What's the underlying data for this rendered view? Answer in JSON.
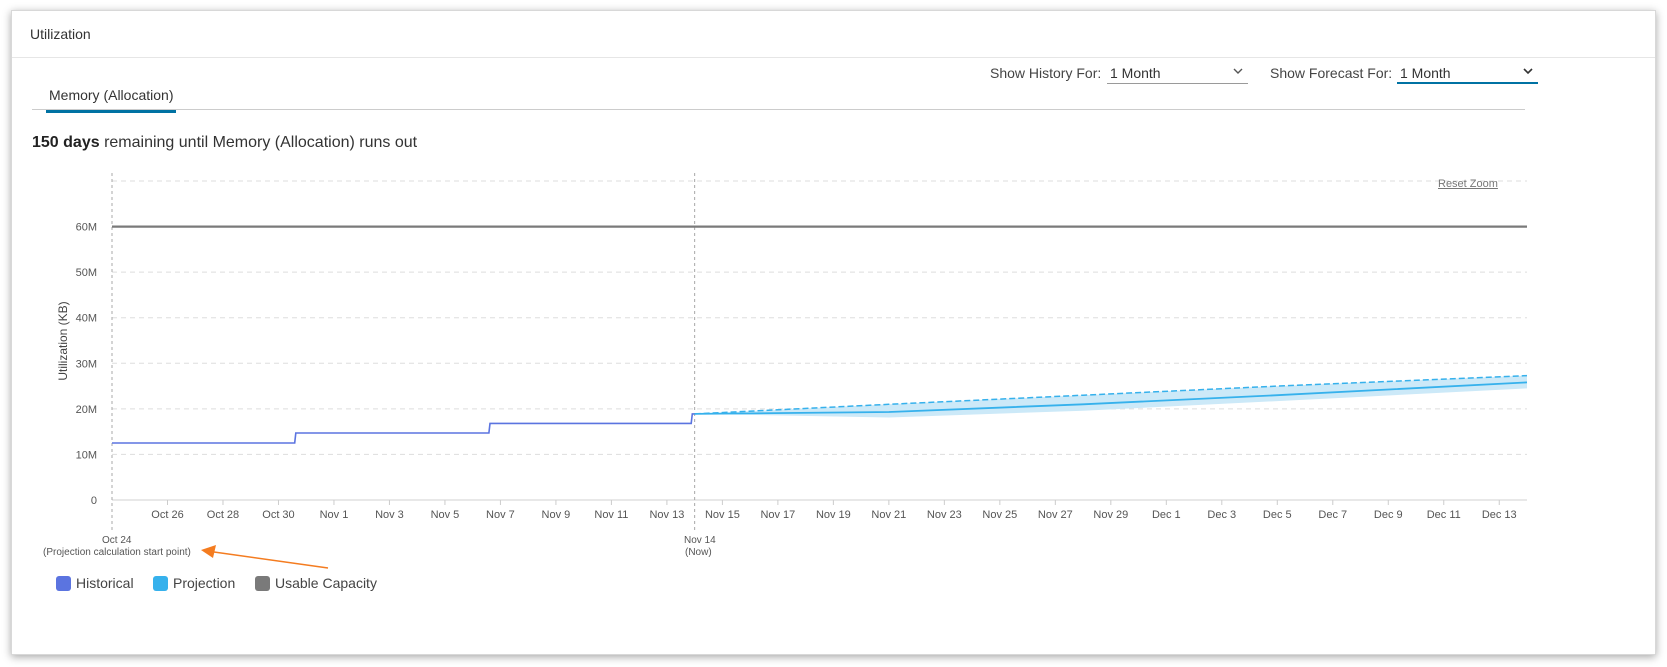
{
  "panel": {
    "title": "Utilization"
  },
  "controls": {
    "history_label": "Show History For:",
    "history_value": "1 Month",
    "forecast_label": "Show Forecast For:",
    "forecast_value": "1 Month"
  },
  "tabs": [
    {
      "label": "Memory (Allocation)",
      "active": true
    }
  ],
  "headline": {
    "days": "150 days",
    "rest": "remaining until Memory (Allocation) runs out"
  },
  "reset_zoom": "Reset Zoom",
  "annotations": {
    "start_date": "Oct 24",
    "start_note": "Projection calculation start point)",
    "now_date": "Nov 14",
    "now_note": "(Now)"
  },
  "legend": [
    {
      "label": "Historical",
      "color": "#5b74e0"
    },
    {
      "label": "Projection",
      "color": "#36b1ec"
    },
    {
      "label": "Usable Capacity",
      "color": "#7a7a7a"
    }
  ],
  "colors": {
    "historical": "#5b74e0",
    "projection": "#36b1ec",
    "projection_band": "#cce9f8",
    "capacity": "#7a7a7a",
    "grid": "#dddddd",
    "arrow": "#f47c20"
  },
  "chart_data": {
    "type": "line",
    "ylabel": "Utilization (KB)",
    "y_ticks": [
      "0",
      "10M",
      "20M",
      "30M",
      "40M",
      "50M",
      "60M"
    ],
    "y_tick_values": [
      0,
      10000000,
      20000000,
      30000000,
      40000000,
      50000000,
      60000000
    ],
    "ylim": [
      0,
      70000000
    ],
    "x_tick_labels": [
      "Oct 26",
      "Oct 28",
      "Oct 30",
      "Nov 1",
      "Nov 3",
      "Nov 5",
      "Nov 7",
      "Nov 9",
      "Nov 11",
      "Nov 13",
      "Nov 15",
      "Nov 17",
      "Nov 19",
      "Nov 21",
      "Nov 23",
      "Nov 25",
      "Nov 27",
      "Nov 29",
      "Dec 1",
      "Dec 3",
      "Dec 5",
      "Dec 7",
      "Dec 9",
      "Dec 11",
      "Dec 13"
    ],
    "x_range": [
      "2023-10-24",
      "2023-12-14"
    ],
    "grid": true,
    "legend_position": "bottom-left",
    "series": [
      {
        "name": "Historical",
        "style": "step",
        "points": [
          {
            "x": "2023-10-24",
            "y": 12500000
          },
          {
            "x": "2023-10-30 14:00",
            "y": 12500000
          },
          {
            "x": "2023-10-30 15:00",
            "y": 14700000
          },
          {
            "x": "2023-11-06 14:00",
            "y": 14700000
          },
          {
            "x": "2023-11-06 15:00",
            "y": 16800000
          },
          {
            "x": "2023-11-13 21:00",
            "y": 16800000
          },
          {
            "x": "2023-11-13 22:00",
            "y": 18900000
          },
          {
            "x": "2023-11-14",
            "y": 18900000
          }
        ]
      },
      {
        "name": "Projection",
        "points": [
          {
            "x": "2023-11-14",
            "y": 18900000
          },
          {
            "x": "2023-11-21",
            "y": 19300000
          },
          {
            "x": "2023-11-28",
            "y": 21000000
          },
          {
            "x": "2023-12-05",
            "y": 23000000
          },
          {
            "x": "2023-12-14",
            "y": 25800000
          }
        ],
        "upper": [
          {
            "x": "2023-11-14",
            "y": 18900000
          },
          {
            "x": "2023-11-21",
            "y": 21000000
          },
          {
            "x": "2023-11-28",
            "y": 23000000
          },
          {
            "x": "2023-12-05",
            "y": 25000000
          },
          {
            "x": "2023-12-14",
            "y": 27300000
          }
        ],
        "lower": [
          {
            "x": "2023-11-14",
            "y": 18900000
          },
          {
            "x": "2023-11-21",
            "y": 18100000
          },
          {
            "x": "2023-11-28",
            "y": 19600000
          },
          {
            "x": "2023-12-05",
            "y": 21700000
          },
          {
            "x": "2023-12-14",
            "y": 24500000
          }
        ]
      },
      {
        "name": "Usable Capacity",
        "points": [
          {
            "x": "2023-10-24",
            "y": 60000000
          },
          {
            "x": "2023-12-14",
            "y": 60000000
          }
        ]
      }
    ],
    "markers": [
      {
        "x": "2023-10-24"
      },
      {
        "x": "2023-11-14"
      }
    ]
  }
}
